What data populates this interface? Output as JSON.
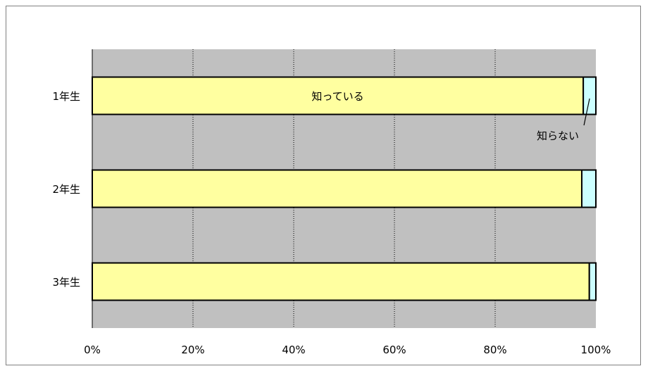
{
  "chart_data": {
    "type": "bar",
    "orientation": "horizontal",
    "stacked": "percent",
    "categories": [
      "1年生",
      "2年生",
      "3年生"
    ],
    "series": [
      {
        "name": "知っている",
        "values": [
          97.5,
          97.2,
          98.7
        ]
      },
      {
        "name": "知らない",
        "values": [
          2.5,
          2.8,
          1.3
        ]
      }
    ],
    "xlim": [
      0,
      100
    ],
    "x_ticks": [
      "0%",
      "20%",
      "40%",
      "60%",
      "80%",
      "100%"
    ],
    "grid": "vertical-dotted",
    "legend": "none",
    "title": "",
    "xlabel": "",
    "ylabel": "",
    "colors": {
      "known": "#ffffa0",
      "unknown": "#ccffff",
      "plot_background": "#c0c0c0",
      "bar_border": "#000000"
    }
  }
}
